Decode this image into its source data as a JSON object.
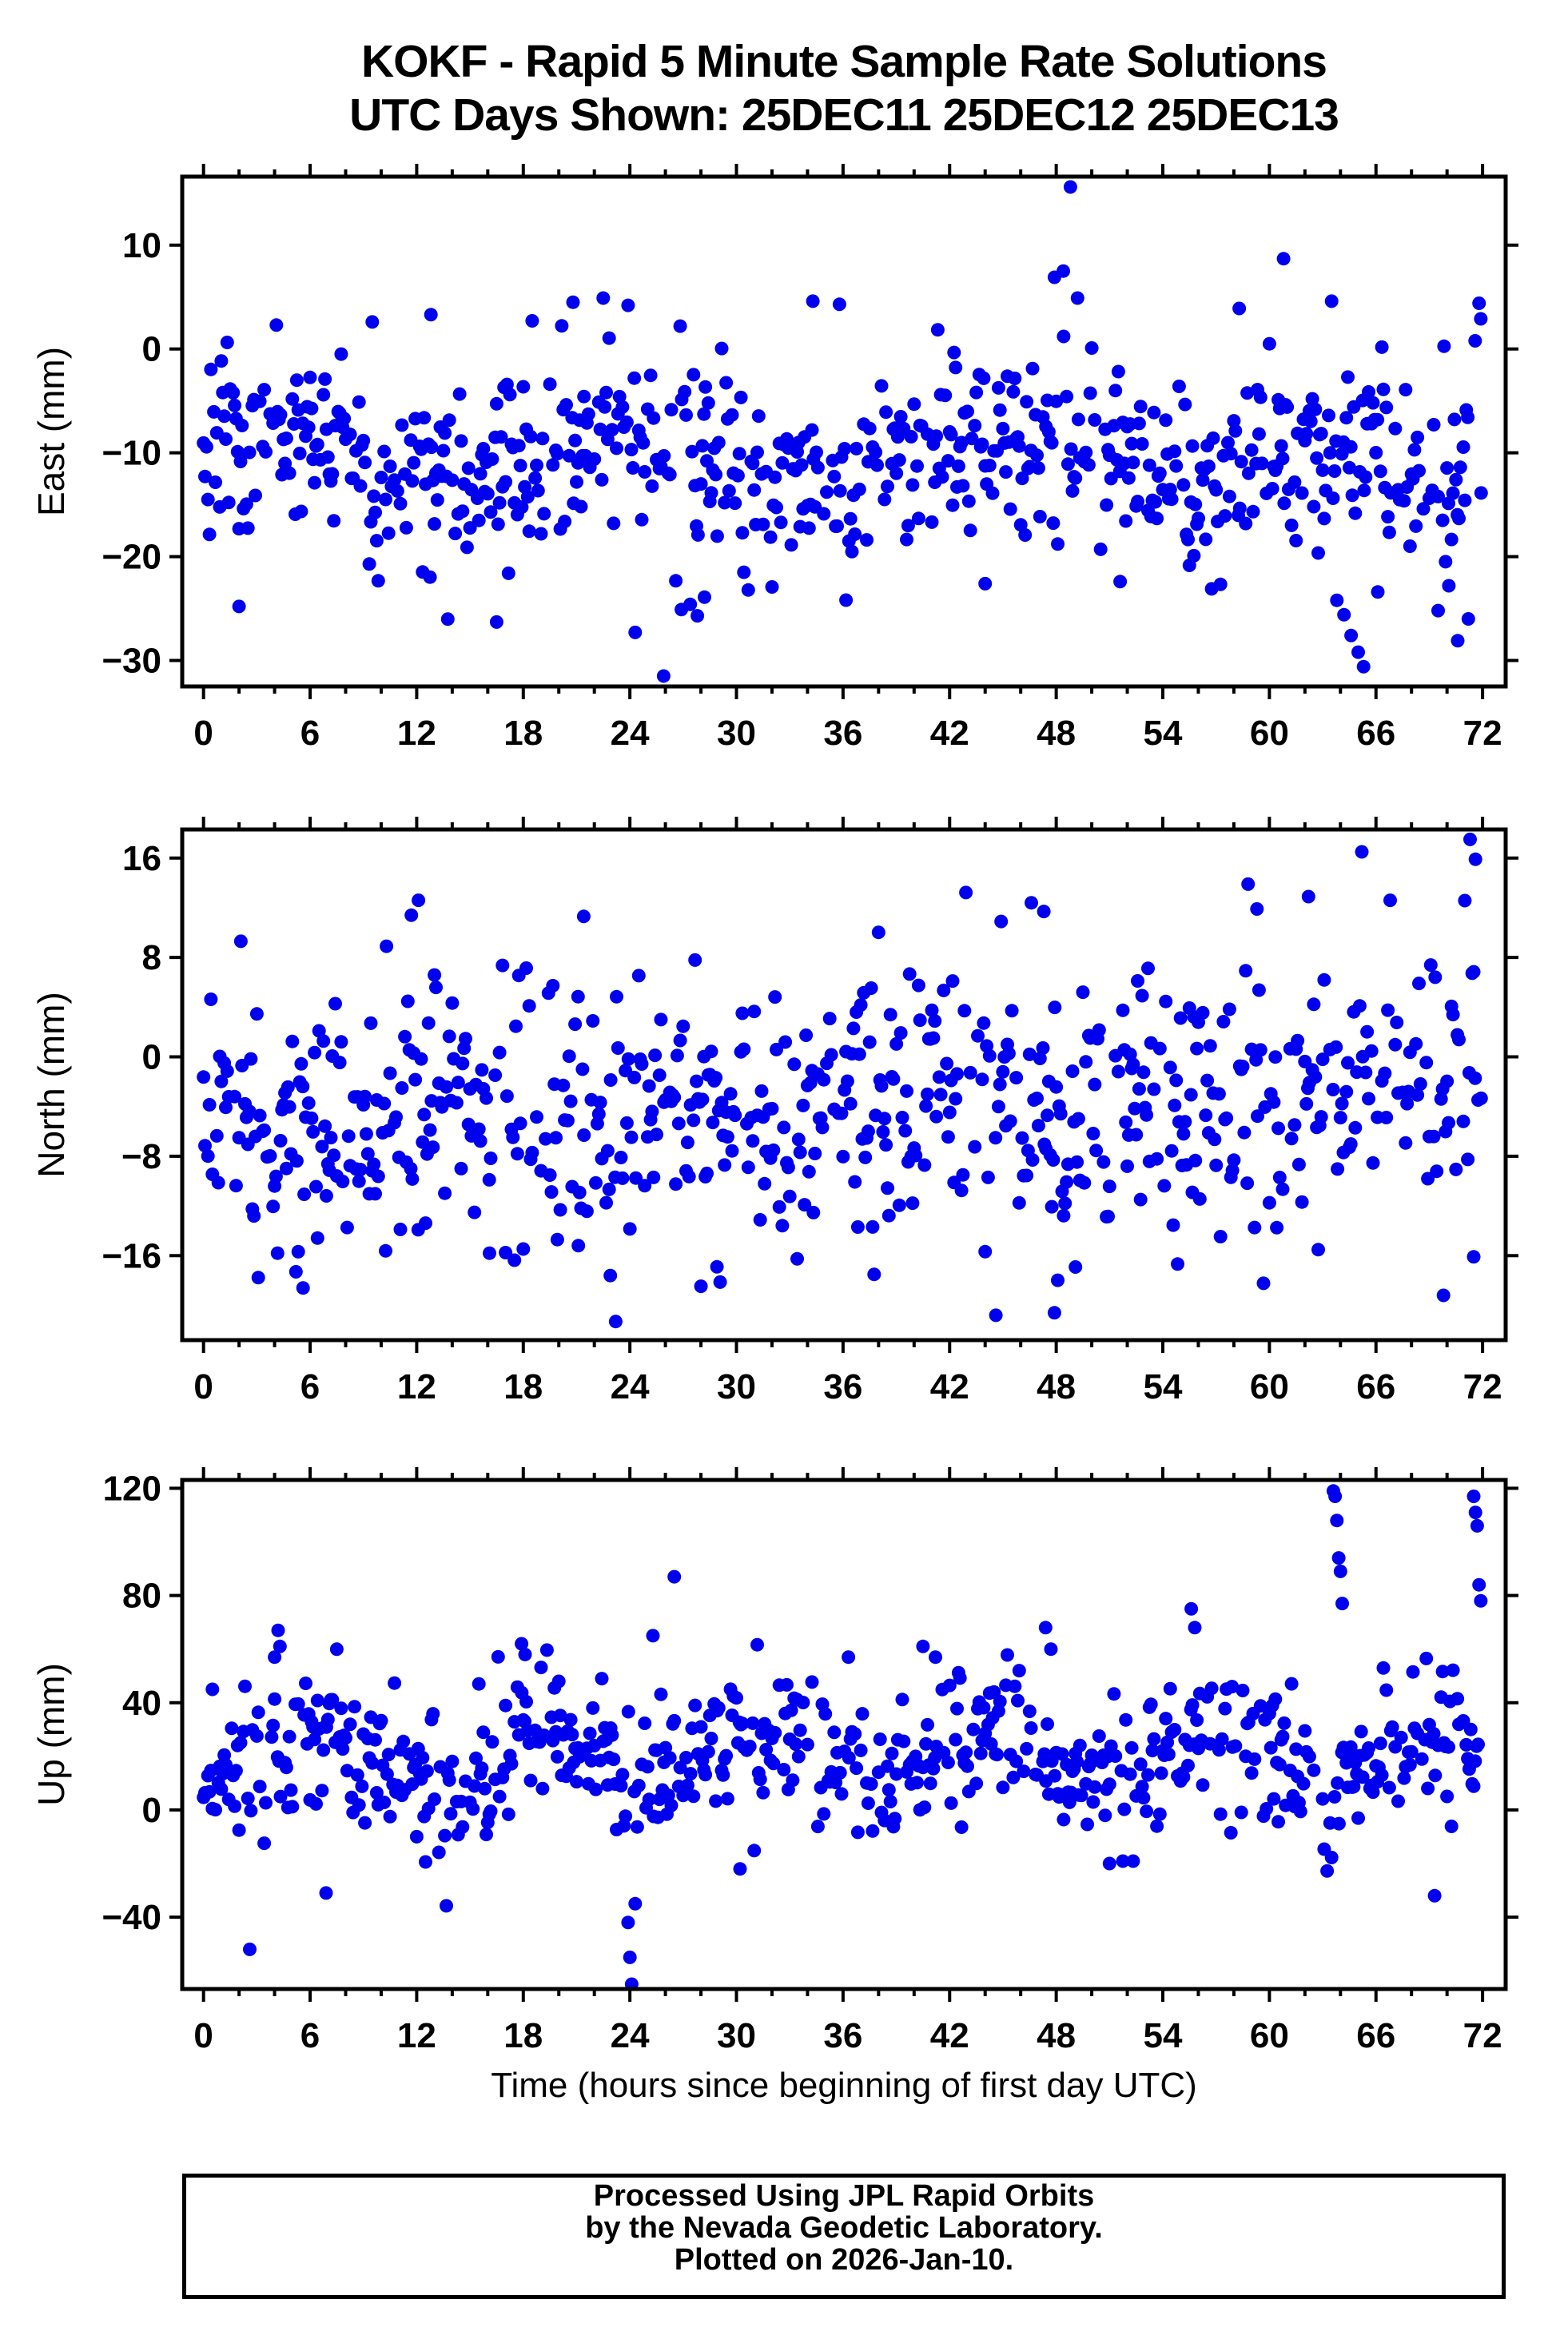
{
  "title": {
    "line1": "KOKF - Rapid 5 Minute Sample Rate Solutions",
    "line2": "UTC Days Shown:  25DEC11 25DEC12 25DEC13"
  },
  "footer": {
    "line1": "Processed Using JPL Rapid Orbits",
    "line2": "by the Nevada Geodetic Laboratory.",
    "line3": "Plotted on 2026-Jan-10."
  },
  "chart_data": {
    "type": "scatter",
    "title": "KOKF - Rapid 5 Minute Sample Rate Solutions",
    "subtitle": "UTC Days Shown:  25DEC11 25DEC12 25DEC13",
    "x_axis": {
      "label": "Time (hours since beginning of first day UTC)",
      "ticks": [
        0,
        6,
        12,
        18,
        24,
        30,
        36,
        42,
        48,
        54,
        60,
        66,
        72
      ],
      "minor_tick_step": 2,
      "range": [
        -1.2,
        73.3
      ]
    },
    "marker": {
      "color": "#0000EE",
      "radius_px": 8.5
    },
    "frame_color": "#000000",
    "grid": false,
    "legend": false,
    "panels": [
      {
        "name": "east",
        "ylabel": "East (mm)",
        "yticks": [
          10,
          0,
          -10,
          -20,
          -30
        ],
        "ylim": [
          -32.5,
          16.6
        ],
        "points_synthesis": {
          "seed": 111225,
          "slots": 864,
          "step_hours": 0.0833333,
          "keep_probability": 0.73,
          "mean": -10.8,
          "sd": 4.6,
          "trend_per_hour": 0,
          "wave": {
            "amplitude": 1.8,
            "period_hours": 20,
            "phase": 0.5
          },
          "clamp": [
            -27.5,
            3.5
          ]
        },
        "highlight_points": [
          [
            48.8,
            15.6
          ],
          [
            60.8,
            8.7
          ],
          [
            48.4,
            7.5
          ],
          [
            47.9,
            6.9
          ],
          [
            49.2,
            4.9
          ],
          [
            63.5,
            4.6
          ],
          [
            22.5,
            4.9
          ],
          [
            20.8,
            4.5
          ],
          [
            23.9,
            4.2
          ],
          [
            34.3,
            4.6
          ],
          [
            35.8,
            4.3
          ],
          [
            12.8,
            3.3
          ],
          [
            9.5,
            2.6
          ],
          [
            4.1,
            2.3
          ],
          [
            58.3,
            3.9
          ],
          [
            71.8,
            4.4
          ],
          [
            71.9,
            2.9
          ],
          [
            2.0,
            -24.8
          ],
          [
            16.5,
            -26.3
          ],
          [
            24.3,
            -27.3
          ],
          [
            25.9,
            -31.5
          ],
          [
            26.9,
            -25.1
          ],
          [
            27.4,
            -24.6
          ],
          [
            27.8,
            -25.7
          ],
          [
            28.2,
            -23.9
          ],
          [
            44.0,
            -22.6
          ],
          [
            51.6,
            -22.4
          ],
          [
            63.8,
            -24.2
          ],
          [
            64.2,
            -25.6
          ],
          [
            64.6,
            -27.6
          ],
          [
            65.0,
            -29.2
          ],
          [
            65.3,
            -30.6
          ],
          [
            66.1,
            -23.4
          ],
          [
            69.5,
            -25.2
          ],
          [
            70.6,
            -28.1
          ],
          [
            71.2,
            -26.0
          ],
          [
            70.1,
            -22.8
          ]
        ]
      },
      {
        "name": "north",
        "ylabel": "North (mm)",
        "yticks": [
          16,
          8,
          0,
          -8,
          -16
        ],
        "ylim": [
          -22.8,
          18.3
        ],
        "points_synthesis": {
          "seed": 121225,
          "slots": 864,
          "step_hours": 0.0833333,
          "keep_probability": 0.73,
          "mean": -4.4,
          "sd": 5.4,
          "trend_per_hour": 0.055,
          "wave": {
            "amplitude": 1.5,
            "period_hours": 14,
            "phase": 2.0
          },
          "clamp": [
            -18.5,
            13.5
          ]
        },
        "highlight_points": [
          [
            2.1,
            9.3
          ],
          [
            10.3,
            8.9
          ],
          [
            11.7,
            11.4
          ],
          [
            12.1,
            12.6
          ],
          [
            21.4,
            11.3
          ],
          [
            44.9,
            10.9
          ],
          [
            46.6,
            12.4
          ],
          [
            47.3,
            11.7
          ],
          [
            58.8,
            13.9
          ],
          [
            59.3,
            11.9
          ],
          [
            62.2,
            12.9
          ],
          [
            65.2,
            16.5
          ],
          [
            66.8,
            12.6
          ],
          [
            71.3,
            17.5
          ],
          [
            71.6,
            15.9
          ],
          [
            5.2,
            -17.3
          ],
          [
            5.6,
            -18.6
          ],
          [
            22.9,
            -17.6
          ],
          [
            23.2,
            -21.3
          ],
          [
            28.9,
            -16.9
          ],
          [
            44.6,
            -20.8
          ],
          [
            47.9,
            -20.6
          ],
          [
            69.8,
            -19.2
          ],
          [
            71.5,
            -16.1
          ],
          [
            16.1,
            -15.8
          ],
          [
            21.1,
            -15.2
          ]
        ]
      },
      {
        "name": "up",
        "ylabel": "Up (mm)",
        "yticks": [
          120,
          80,
          40,
          0,
          -40
        ],
        "ylim": [
          -66.8,
          123.1
        ],
        "points_synthesis": {
          "seed": 131225,
          "slots": 864,
          "step_hours": 0.0833333,
          "keep_probability": 0.73,
          "mean": 19,
          "sd": 13.5,
          "trend_per_hour": 0,
          "wave": {
            "amplitude": 9,
            "period_hours": 12.4,
            "phase": 4.2
          },
          "clamp": [
            -36,
            70
          ]
        },
        "highlight_points": [
          [
            2.6,
            -52
          ],
          [
            4.0,
            57
          ],
          [
            4.2,
            67
          ],
          [
            4.3,
            61
          ],
          [
            6.9,
            -31
          ],
          [
            17.9,
            62
          ],
          [
            18.1,
            58
          ],
          [
            23.9,
            -42
          ],
          [
            24.0,
            -55
          ],
          [
            24.1,
            -65
          ],
          [
            24.3,
            -35
          ],
          [
            25.3,
            65
          ],
          [
            26.5,
            87
          ],
          [
            30.2,
            -22
          ],
          [
            36.3,
            57
          ],
          [
            40.5,
            61
          ],
          [
            41.2,
            57
          ],
          [
            47.4,
            68
          ],
          [
            47.7,
            60
          ],
          [
            51.0,
            -20
          ],
          [
            55.6,
            75
          ],
          [
            55.8,
            68
          ],
          [
            57.9,
            46
          ],
          [
            63.6,
            119
          ],
          [
            63.7,
            117
          ],
          [
            63.8,
            108
          ],
          [
            63.9,
            94
          ],
          [
            64.0,
            89
          ],
          [
            64.1,
            77
          ],
          [
            69.3,
            -32
          ],
          [
            71.5,
            117
          ],
          [
            71.6,
            111
          ],
          [
            71.7,
            106
          ],
          [
            71.8,
            84
          ],
          [
            71.9,
            78
          ],
          [
            0.5,
            45
          ]
        ]
      }
    ]
  }
}
